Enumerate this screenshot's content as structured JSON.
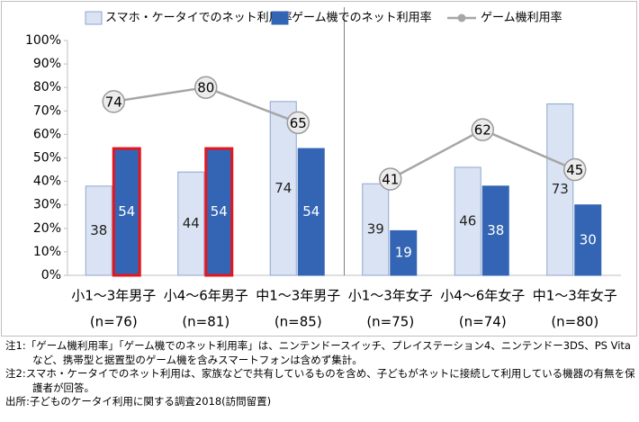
{
  "chart_data": {
    "type": "bar-line",
    "categories": [
      "小1～3年男子",
      "小4～6年男子",
      "中1～3年男子",
      "小1～3年女子",
      "小4～6年女子",
      "中1～3年女子"
    ],
    "category_notes": [
      "(n=76)",
      "(n=81)",
      "(n=85)",
      "(n=75)",
      "(n=74)",
      "(n=80)"
    ],
    "series": [
      {
        "name": "スマホ・ケータイでのネット利用率",
        "type": "bar",
        "color": "#dae3f3",
        "values": [
          38,
          44,
          74,
          39,
          46,
          73
        ]
      },
      {
        "name": "ゲーム機でのネット利用率",
        "type": "bar",
        "color": "#3465b4",
        "values": [
          54,
          54,
          54,
          19,
          38,
          30
        ],
        "highlighted": [
          true,
          true,
          false,
          false,
          false,
          false
        ],
        "highlight_color": "#e8141b"
      },
      {
        "name": "ゲーム機利用率",
        "type": "line",
        "color": "#a6a6a6",
        "values": [
          74,
          80,
          65,
          41,
          62,
          45
        ]
      }
    ],
    "separator_after_category": 2,
    "ylim": [
      0,
      100
    ],
    "yticks": [
      {
        "value": 0,
        "label": "0%"
      },
      {
        "value": 10,
        "label": "10%"
      },
      {
        "value": 20,
        "label": "20%"
      },
      {
        "value": 30,
        "label": "30%"
      },
      {
        "value": 40,
        "label": "40%"
      },
      {
        "value": 50,
        "label": "50%"
      },
      {
        "value": 60,
        "label": "60%"
      },
      {
        "value": 70,
        "label": "70%"
      },
      {
        "value": 80,
        "label": "80%"
      },
      {
        "value": 90,
        "label": "90%"
      },
      {
        "value": 100,
        "label": "100%"
      }
    ],
    "grid": false,
    "legend": "top",
    "notes": [
      "注1:「ゲーム機利用率」「ゲーム機でのネット利用率」は、ニンテンドースイッチ、プレイステーション4、ニンテンドー3DS、PS Vitaなど、携帯型と据置型のゲーム機を含みスマートフォンは含めず集計。",
      "注2:スマホ・ケータイでのネット利用は、家族などで共有しているものを含め、子どもがネットに接続して利用している機器の有無を保護者が回答。",
      "出所:子どものケータイ利用に関する調査2018(訪問留置)"
    ]
  }
}
